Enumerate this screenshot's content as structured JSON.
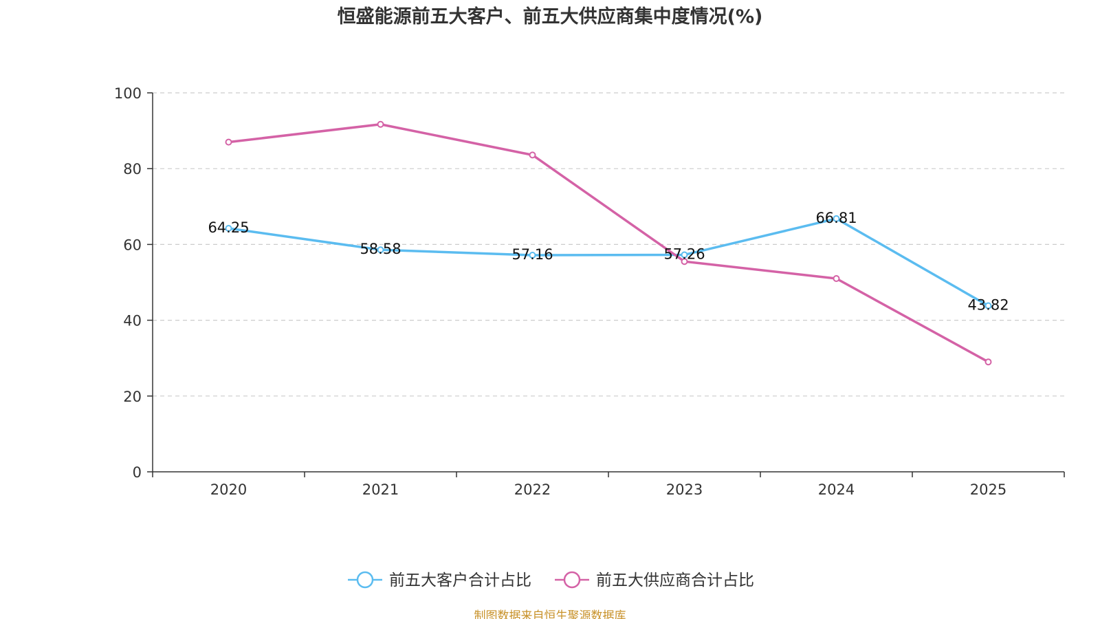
{
  "chart_data": {
    "type": "line",
    "title": "恒盛能源前五大客户、前五大供应商集中度情况(%)",
    "categories": [
      "2020",
      "2021",
      "2022",
      "2023",
      "2024",
      "2025"
    ],
    "yticks": [
      "0",
      "20",
      "40",
      "60",
      "80",
      "100"
    ],
    "ylim": [
      0,
      100
    ],
    "grid": true,
    "legend_position": "bottom",
    "series": [
      {
        "name": "前五大客户合计占比",
        "color": "#5bbcf0",
        "values": [
          64.25,
          58.58,
          57.16,
          57.26,
          66.81,
          43.82
        ],
        "labels": [
          "64.25",
          "58.58",
          "57.16",
          "57.26",
          "66.81",
          "43.82"
        ]
      },
      {
        "name": "前五大供应商合计占比",
        "color": "#d462a6",
        "values": [
          87.0,
          91.7,
          83.6,
          55.5,
          51.0,
          29.0
        ]
      }
    ],
    "source": "制图数据来自恒生聚源数据库",
    "source_color": "#c8922a"
  }
}
